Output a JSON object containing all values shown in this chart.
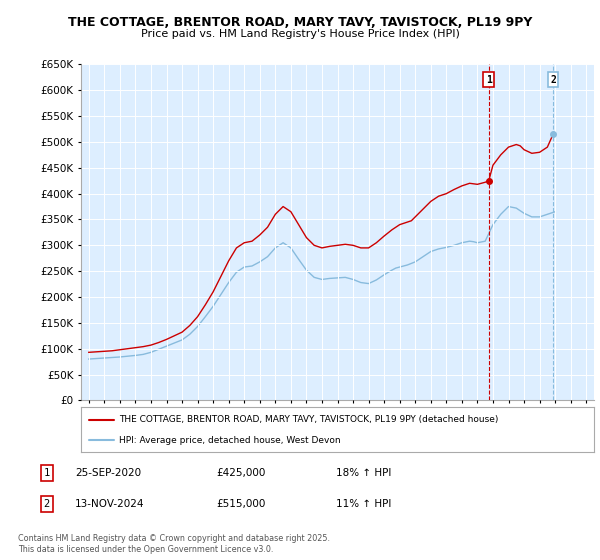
{
  "title": "THE COTTAGE, BRENTOR ROAD, MARY TAVY, TAVISTOCK, PL19 9PY",
  "subtitle": "Price paid vs. HM Land Registry's House Price Index (HPI)",
  "fig_bg": "#ffffff",
  "plot_bg": "#ddeeff",
  "grid_color": "#ffffff",
  "ylim": [
    0,
    650000
  ],
  "yticks": [
    0,
    50000,
    100000,
    150000,
    200000,
    250000,
    300000,
    350000,
    400000,
    450000,
    500000,
    550000,
    600000,
    650000
  ],
  "xlim_start": 1994.5,
  "xlim_end": 2027.5,
  "red_line_color": "#cc0000",
  "blue_line_color": "#88bbdd",
  "marker1_x": 2020.73,
  "marker1_y": 425000,
  "marker2_x": 2024.87,
  "marker2_y": 515000,
  "marker1_label": "1",
  "marker2_label": "2",
  "annotation1_date": "25-SEP-2020",
  "annotation1_price": "£425,000",
  "annotation1_hpi": "18% ↑ HPI",
  "annotation2_date": "13-NOV-2024",
  "annotation2_price": "£515,000",
  "annotation2_hpi": "11% ↑ HPI",
  "legend_line1": "THE COTTAGE, BRENTOR ROAD, MARY TAVY, TAVISTOCK, PL19 9PY (detached house)",
  "legend_line2": "HPI: Average price, detached house, West Devon",
  "footer": "Contains HM Land Registry data © Crown copyright and database right 2025.\nThis data is licensed under the Open Government Licence v3.0.",
  "red_x": [
    1995.0,
    1995.25,
    1995.5,
    1995.75,
    1996.0,
    1996.25,
    1996.5,
    1996.75,
    1997.0,
    1997.25,
    1997.5,
    1997.75,
    1998.0,
    1998.25,
    1998.5,
    1998.75,
    1999.0,
    1999.25,
    1999.5,
    1999.75,
    2000.0,
    2000.25,
    2000.5,
    2000.75,
    2001.0,
    2001.25,
    2001.5,
    2001.75,
    2002.0,
    2002.25,
    2002.5,
    2002.75,
    2003.0,
    2003.25,
    2003.5,
    2003.75,
    2004.0,
    2004.25,
    2004.5,
    2004.75,
    2005.0,
    2005.25,
    2005.5,
    2005.75,
    2006.0,
    2006.25,
    2006.5,
    2006.75,
    2007.0,
    2007.25,
    2007.5,
    2007.75,
    2008.0,
    2008.25,
    2008.5,
    2008.75,
    2009.0,
    2009.25,
    2009.5,
    2009.75,
    2010.0,
    2010.25,
    2010.5,
    2010.75,
    2011.0,
    2011.25,
    2011.5,
    2011.75,
    2012.0,
    2012.25,
    2012.5,
    2012.75,
    2013.0,
    2013.25,
    2013.5,
    2013.75,
    2014.0,
    2014.25,
    2014.5,
    2014.75,
    2015.0,
    2015.25,
    2015.5,
    2015.75,
    2016.0,
    2016.25,
    2016.5,
    2016.75,
    2017.0,
    2017.25,
    2017.5,
    2017.75,
    2018.0,
    2018.25,
    2018.5,
    2018.75,
    2019.0,
    2019.25,
    2019.5,
    2019.75,
    2020.0,
    2020.25,
    2020.5,
    2020.73,
    2021.0,
    2021.25,
    2021.5,
    2021.75,
    2022.0,
    2022.25,
    2022.5,
    2022.75,
    2023.0,
    2023.25,
    2023.5,
    2023.75,
    2024.0,
    2024.25,
    2024.5,
    2024.87
  ],
  "red_y": [
    93000,
    93500,
    94000,
    94500,
    95000,
    95500,
    96000,
    97000,
    98000,
    99000,
    100000,
    101000,
    102000,
    103000,
    104000,
    105500,
    107000,
    109500,
    112000,
    115000,
    118000,
    121500,
    125000,
    128500,
    132000,
    138500,
    145000,
    153500,
    162000,
    173500,
    185000,
    197500,
    210000,
    225000,
    240000,
    255000,
    270000,
    282500,
    295000,
    300000,
    305000,
    306500,
    308000,
    314000,
    320000,
    327500,
    335000,
    347500,
    360000,
    367500,
    375000,
    370000,
    365000,
    352500,
    340000,
    327500,
    315000,
    307500,
    300000,
    297500,
    295000,
    296500,
    298000,
    299000,
    300000,
    301000,
    302000,
    301000,
    300000,
    297500,
    295000,
    295000,
    295000,
    300000,
    305000,
    311500,
    318000,
    324000,
    330000,
    335000,
    340000,
    342500,
    345000,
    347500,
    355000,
    362500,
    370000,
    377500,
    385000,
    390000,
    395000,
    397500,
    400000,
    404000,
    408000,
    411500,
    415000,
    417500,
    420000,
    419000,
    418000,
    420000,
    422000,
    425000,
    455000,
    465000,
    475000,
    482500,
    490000,
    492500,
    495000,
    492500,
    485000,
    481500,
    478000,
    479000,
    480000,
    485000,
    490000,
    515000
  ],
  "blue_x": [
    1995.0,
    1995.25,
    1995.5,
    1995.75,
    1996.0,
    1996.25,
    1996.5,
    1996.75,
    1997.0,
    1997.25,
    1997.5,
    1997.75,
    1998.0,
    1998.25,
    1998.5,
    1998.75,
    1999.0,
    1999.25,
    1999.5,
    1999.75,
    2000.0,
    2000.25,
    2000.5,
    2000.75,
    2001.0,
    2001.25,
    2001.5,
    2001.75,
    2002.0,
    2002.25,
    2002.5,
    2002.75,
    2003.0,
    2003.25,
    2003.5,
    2003.75,
    2004.0,
    2004.25,
    2004.5,
    2004.75,
    2005.0,
    2005.25,
    2005.5,
    2005.75,
    2006.0,
    2006.25,
    2006.5,
    2006.75,
    2007.0,
    2007.25,
    2007.5,
    2007.75,
    2008.0,
    2008.25,
    2008.5,
    2008.75,
    2009.0,
    2009.25,
    2009.5,
    2009.75,
    2010.0,
    2010.25,
    2010.5,
    2010.75,
    2011.0,
    2011.25,
    2011.5,
    2011.75,
    2012.0,
    2012.25,
    2012.5,
    2012.75,
    2013.0,
    2013.25,
    2013.5,
    2013.75,
    2014.0,
    2014.25,
    2014.5,
    2014.75,
    2015.0,
    2015.25,
    2015.5,
    2015.75,
    2016.0,
    2016.25,
    2016.5,
    2016.75,
    2017.0,
    2017.25,
    2017.5,
    2017.75,
    2018.0,
    2018.25,
    2018.5,
    2018.75,
    2019.0,
    2019.25,
    2019.5,
    2019.75,
    2020.0,
    2020.25,
    2020.5,
    2020.75,
    2021.0,
    2021.25,
    2021.5,
    2021.75,
    2022.0,
    2022.25,
    2022.5,
    2022.75,
    2023.0,
    2023.25,
    2023.5,
    2023.75,
    2024.0,
    2024.25,
    2024.5,
    2024.75,
    2025.0
  ],
  "blue_y": [
    80000,
    80500,
    81000,
    81500,
    82000,
    82500,
    83000,
    83500,
    84000,
    84750,
    85500,
    86250,
    87000,
    88000,
    89000,
    91000,
    93000,
    96000,
    99000,
    102000,
    105000,
    108000,
    111000,
    114000,
    117000,
    122500,
    128000,
    135500,
    143000,
    152500,
    162000,
    172000,
    182000,
    193500,
    205000,
    216500,
    228000,
    238000,
    248000,
    253000,
    258000,
    259000,
    260000,
    264000,
    268000,
    273000,
    278000,
    286500,
    295000,
    300000,
    305000,
    300000,
    295000,
    284000,
    273000,
    262500,
    252000,
    245000,
    238000,
    236000,
    234000,
    235000,
    236000,
    236500,
    237000,
    237500,
    238000,
    236000,
    234000,
    231000,
    228000,
    227000,
    226000,
    229500,
    233000,
    238000,
    243000,
    247500,
    252000,
    256000,
    258000,
    260000,
    262000,
    265000,
    268000,
    273000,
    278000,
    283000,
    288000,
    290500,
    293000,
    294500,
    296000,
    298000,
    300000,
    302500,
    305000,
    306500,
    308000,
    307000,
    305000,
    306500,
    308000,
    324000,
    340000,
    350000,
    360000,
    367500,
    375000,
    373500,
    372000,
    367000,
    362000,
    358500,
    355000,
    355000,
    355000,
    357500,
    360000,
    362500,
    365000
  ]
}
